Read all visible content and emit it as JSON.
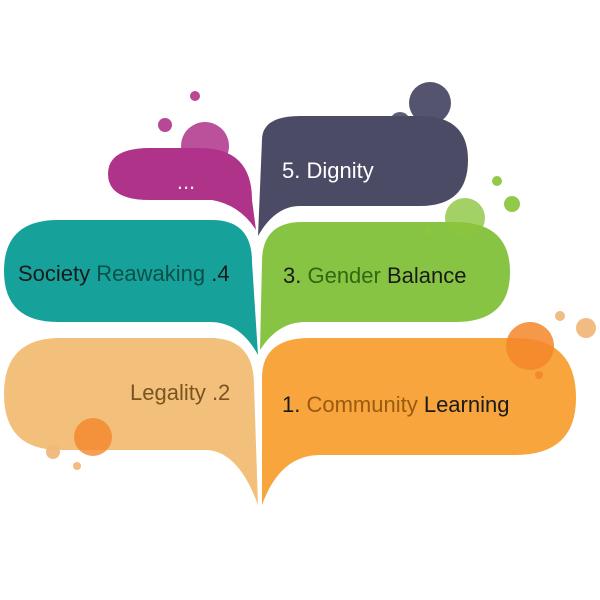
{
  "bubbles": [
    {
      "id": "ellipsis",
      "parts": [
        {
          "text": "...",
          "color": "#f2f2f2"
        }
      ],
      "fill": "#b0338a"
    },
    {
      "id": "dignity",
      "parts": [
        {
          "text": "5. Dignity",
          "color": "#ffffff"
        }
      ],
      "fill": "#4b4b66"
    },
    {
      "id": "society",
      "parts": [
        {
          "text": "Society ",
          "color": "#1a1a1a"
        },
        {
          "text": "Reawaking",
          "color": "#0a4f48"
        },
        {
          "text": " .4",
          "color": "#1a1a1a"
        }
      ],
      "fill": "#16a29a"
    },
    {
      "id": "gender",
      "parts": [
        {
          "text": "3. ",
          "color": "#1a1a1a"
        },
        {
          "text": "Gender",
          "color": "#2f6a12"
        },
        {
          "text": " Balance",
          "color": "#1a1a1a"
        }
      ],
      "fill": "#87c443"
    },
    {
      "id": "legality",
      "parts": [
        {
          "text": "Legality .2",
          "color": "#7a5420"
        }
      ],
      "fill": "#f3c07c"
    },
    {
      "id": "community",
      "parts": [
        {
          "text": "1. ",
          "color": "#1a1a1a"
        },
        {
          "text": "Community",
          "color": "#9a5a10"
        },
        {
          "text": " Learning",
          "color": "#1a1a1a"
        }
      ],
      "fill": "#f7a53c"
    }
  ],
  "dot_colors": {
    "magenta": "#b0338a",
    "slate": "#4b4b66",
    "green": "#8cc63f",
    "orange": "#f4862a",
    "peach": "#f0b77a"
  }
}
